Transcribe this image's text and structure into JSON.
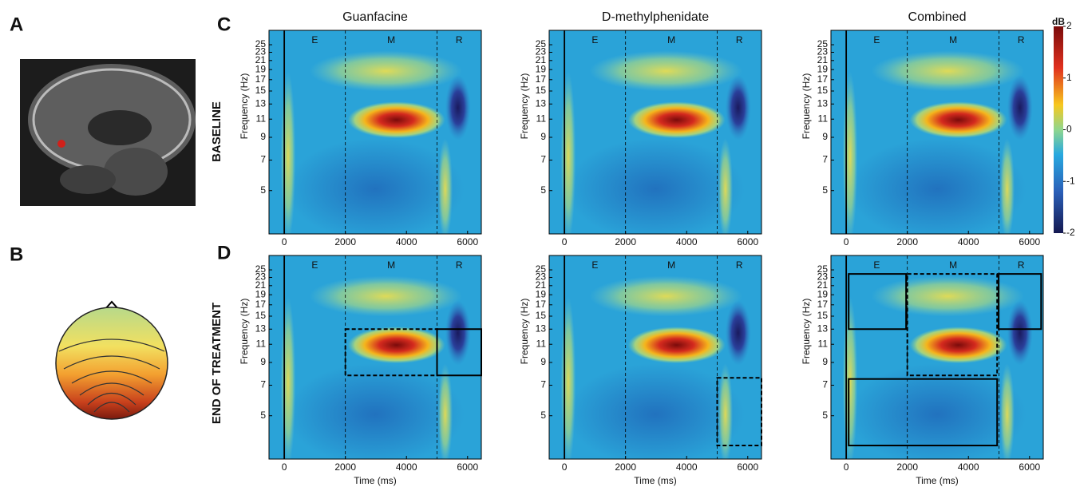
{
  "panel_labels": [
    "A",
    "B",
    "C",
    "D"
  ],
  "row_labels": [
    "BASELINE",
    "END OF TREATMENT"
  ],
  "columns": [
    "Guanfacine",
    "D-methylphenidate",
    "Combined"
  ],
  "axes": {
    "x_label": "Time (ms)",
    "y_label": "Frequency (Hz)",
    "xlim": [
      -500,
      6450
    ],
    "xticks": [
      0,
      2000,
      4000,
      6000
    ],
    "ylim": [
      3.1,
      29.3
    ],
    "yticks": [
      5,
      7,
      9,
      11,
      13,
      15,
      17,
      19,
      21,
      23,
      25
    ],
    "y_scale": "log"
  },
  "epochs": [
    {
      "label": "E",
      "start": 0
    },
    {
      "label": "M",
      "start": 2000
    },
    {
      "label": "R",
      "start": 5000
    }
  ],
  "colorbar": {
    "label": "dB",
    "lim": [
      -2,
      2
    ],
    "ticks": [
      2,
      1,
      0,
      -1,
      -2
    ]
  },
  "boxes": [
    [
      {
        "time": [
          2000,
          5000
        ],
        "freq": [
          7.8,
          13
        ],
        "style": "dashed"
      },
      {
        "time": [
          5000,
          6450
        ],
        "freq": [
          7.8,
          13
        ],
        "style": "solid"
      }
    ],
    [
      {
        "time": [
          5000,
          6450
        ],
        "freq": [
          3.6,
          7.6
        ],
        "style": "dashed"
      }
    ],
    [
      {
        "time": [
          80,
          1960
        ],
        "freq": [
          13,
          23.9
        ],
        "style": "solid"
      },
      {
        "time": [
          2000,
          4940
        ],
        "freq": [
          7.8,
          23.9
        ],
        "style": "dashed"
      },
      {
        "time": [
          4990,
          6380
        ],
        "freq": [
          13,
          23.9
        ],
        "style": "solid"
      },
      {
        "time": [
          80,
          4940
        ],
        "freq": [
          3.6,
          7.5
        ],
        "style": "solid"
      }
    ]
  ]
}
